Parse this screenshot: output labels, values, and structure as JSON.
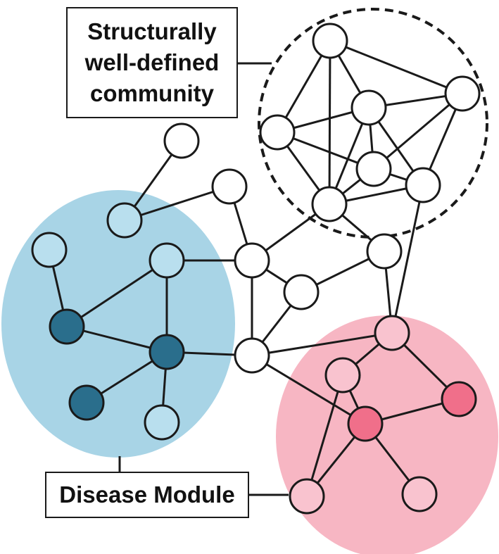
{
  "labels": {
    "community_line1": "Structurally",
    "community_line2": "well-defined",
    "community_line3": "community",
    "disease_module": "Disease Module"
  },
  "colors": {
    "blue_module_fill": "#a8d4e6",
    "pink_module_fill": "#f7b6c3",
    "node_white": "#ffffff",
    "node_light_blue": "#b9dfee",
    "node_dark_teal": "#2a6e8c",
    "node_light_pink": "#f9c3cf",
    "node_hot_pink": "#f06f8a",
    "stroke": "#1a1a1a"
  },
  "nodes": [
    {
      "id": "c1",
      "type": "white",
      "group": "community"
    },
    {
      "id": "c2",
      "type": "white",
      "group": "community"
    },
    {
      "id": "c3",
      "type": "white",
      "group": "community"
    },
    {
      "id": "c4",
      "type": "white",
      "group": "community"
    },
    {
      "id": "c5",
      "type": "white",
      "group": "community"
    },
    {
      "id": "c6",
      "type": "white",
      "group": "community"
    },
    {
      "id": "c7",
      "type": "white",
      "group": "community"
    },
    {
      "id": "w1",
      "type": "white",
      "group": "network"
    },
    {
      "id": "w2",
      "type": "white",
      "group": "network"
    },
    {
      "id": "w3",
      "type": "white",
      "group": "network"
    },
    {
      "id": "w4",
      "type": "white",
      "group": "network"
    },
    {
      "id": "w5",
      "type": "white",
      "group": "network"
    },
    {
      "id": "w6",
      "type": "white",
      "group": "network"
    },
    {
      "id": "b1",
      "type": "light_blue",
      "group": "blue_module"
    },
    {
      "id": "b2",
      "type": "light_blue",
      "group": "blue_module"
    },
    {
      "id": "b3",
      "type": "light_blue",
      "group": "blue_module"
    },
    {
      "id": "b4",
      "type": "light_blue",
      "group": "blue_module"
    },
    {
      "id": "d1",
      "type": "dark_teal",
      "group": "blue_module"
    },
    {
      "id": "d2",
      "type": "dark_teal",
      "group": "blue_module"
    },
    {
      "id": "d3",
      "type": "dark_teal",
      "group": "blue_module"
    },
    {
      "id": "p1",
      "type": "light_pink",
      "group": "pink_module"
    },
    {
      "id": "p2",
      "type": "light_pink",
      "group": "pink_module"
    },
    {
      "id": "p3",
      "type": "light_pink",
      "group": "pink_module"
    },
    {
      "id": "p4",
      "type": "light_pink",
      "group": "pink_module"
    },
    {
      "id": "h1",
      "type": "hot_pink",
      "group": "pink_module"
    },
    {
      "id": "h2",
      "type": "hot_pink",
      "group": "pink_module"
    }
  ],
  "edges": [
    [
      "c1",
      "c2"
    ],
    [
      "c1",
      "c3"
    ],
    [
      "c1",
      "c4"
    ],
    [
      "c1",
      "c5"
    ],
    [
      "c2",
      "c3"
    ],
    [
      "c2",
      "c6"
    ],
    [
      "c2",
      "c7"
    ],
    [
      "c3",
      "c4"
    ],
    [
      "c3",
      "c5"
    ],
    [
      "c3",
      "c6"
    ],
    [
      "c3",
      "c7"
    ],
    [
      "c4",
      "c5"
    ],
    [
      "c4",
      "c6"
    ],
    [
      "c5",
      "c6"
    ],
    [
      "c5",
      "c7"
    ],
    [
      "c6",
      "c7"
    ],
    [
      "w1",
      "b4"
    ],
    [
      "b4",
      "w2"
    ],
    [
      "w2",
      "w3"
    ],
    [
      "w3",
      "b1"
    ],
    [
      "w3",
      "c5"
    ],
    [
      "w3",
      "w4"
    ],
    [
      "w3",
      "w6"
    ],
    [
      "w4",
      "w5"
    ],
    [
      "w5",
      "c5"
    ],
    [
      "w5",
      "p4"
    ],
    [
      "c7",
      "p4"
    ],
    [
      "b2",
      "d1"
    ],
    [
      "b1",
      "d1"
    ],
    [
      "b1",
      "d2"
    ],
    [
      "d1",
      "d2"
    ],
    [
      "d2",
      "d3"
    ],
    [
      "d2",
      "b3"
    ],
    [
      "d2",
      "w6"
    ],
    [
      "w6",
      "w4"
    ],
    [
      "w6",
      "p4"
    ],
    [
      "w6",
      "h1"
    ],
    [
      "p4",
      "p1"
    ],
    [
      "p4",
      "h2"
    ],
    [
      "p1",
      "h1"
    ],
    [
      "p1",
      "p2"
    ],
    [
      "h1",
      "h2"
    ],
    [
      "h1",
      "p2"
    ],
    [
      "h1",
      "p3"
    ]
  ]
}
